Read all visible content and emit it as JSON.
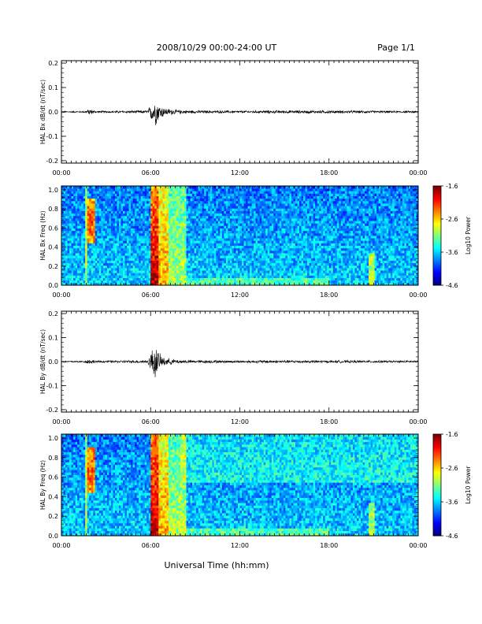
{
  "header": {
    "title": "2008/10/29   00:00-24:00 UT",
    "page": "Page 1/1"
  },
  "xaxis_label": "Universal Time (hh:mm)",
  "chart_data": [
    {
      "type": "line",
      "ylabel": "HAL Bx dB/dt (nT/sec)",
      "xlim": [
        0,
        24
      ],
      "ylim": [
        -0.21,
        0.21
      ],
      "xticklabels": [
        "00:00",
        "06:00",
        "12:00",
        "18:00",
        "00:00"
      ],
      "yticks": [
        -0.2,
        -0.1,
        0.0,
        0.1,
        0.2
      ],
      "yticklabels": [
        "-0.2",
        "-0.1",
        "0.0",
        "0.1",
        "0.2"
      ],
      "series": [
        {
          "envelope_hours": [
            0,
            1.5,
            1.9,
            2.3,
            5.8,
            6.1,
            6.3,
            6.6,
            7.0,
            7.8,
            9.0,
            12.0,
            14.0,
            18.0,
            20.0,
            24.0
          ],
          "envelope_amp": [
            0.003,
            0.003,
            0.012,
            0.004,
            0.006,
            0.04,
            0.055,
            0.03,
            0.015,
            0.008,
            0.006,
            0.005,
            0.006,
            0.006,
            0.005,
            0.004
          ]
        }
      ]
    },
    {
      "type": "heatmap",
      "ylabel": "HAL Bx Freq (Hz)",
      "xlim": [
        0,
        24
      ],
      "ylim": [
        0,
        1.04
      ],
      "xticklabels": [
        "00:00",
        "06:00",
        "12:00",
        "18:00",
        "00:00"
      ],
      "yticks": [
        0.0,
        0.2,
        0.4,
        0.6,
        0.8,
        1.0
      ],
      "yticklabels": [
        "0.0",
        "0.2",
        "0.4",
        "0.6",
        "0.8",
        "1.0"
      ],
      "colorbar": {
        "label": "Log10 Power",
        "ticks": [
          -1.6,
          -2.6,
          -3.6,
          -4.6
        ],
        "ticklabels": [
          "-1.6",
          "-2.6",
          "-3.6",
          "-4.6"
        ],
        "range": [
          -4.6,
          -1.6
        ]
      }
    },
    {
      "type": "line",
      "ylabel": "HAL By dB/dt (nT/sec)",
      "xlim": [
        0,
        24
      ],
      "ylim": [
        -0.21,
        0.21
      ],
      "xticklabels": [
        "00:00",
        "06:00",
        "12:00",
        "18:00",
        "00:00"
      ],
      "yticks": [
        -0.2,
        -0.1,
        0.0,
        0.1,
        0.2
      ],
      "yticklabels": [
        "-0.2",
        "-0.1",
        "0.0",
        "0.1",
        "0.2"
      ],
      "series": [
        {
          "envelope_hours": [
            0,
            1.5,
            1.9,
            2.3,
            5.8,
            6.1,
            6.3,
            6.6,
            7.0,
            7.8,
            9.0,
            12.0,
            14.0,
            18.0,
            20.0,
            24.0
          ],
          "envelope_amp": [
            0.003,
            0.003,
            0.012,
            0.004,
            0.006,
            0.05,
            0.07,
            0.03,
            0.015,
            0.008,
            0.006,
            0.005,
            0.006,
            0.005,
            0.005,
            0.004
          ]
        }
      ]
    },
    {
      "type": "heatmap",
      "ylabel": "HAL By Freq (Hz)",
      "xlim": [
        0,
        24
      ],
      "ylim": [
        0,
        1.04
      ],
      "xticklabels": [
        "00:00",
        "06:00",
        "12:00",
        "18:00",
        "00:00"
      ],
      "yticks": [
        0.0,
        0.2,
        0.4,
        0.6,
        0.8,
        1.0
      ],
      "yticklabels": [
        "0.0",
        "0.2",
        "0.4",
        "0.6",
        "0.8",
        "1.0"
      ],
      "colorbar": {
        "label": "Log10 Power",
        "ticks": [
          -1.6,
          -2.6,
          -3.6,
          -4.6
        ],
        "ticklabels": [
          "-1.6",
          "-2.6",
          "-3.6",
          "-4.6"
        ],
        "range": [
          -4.6,
          -1.6
        ]
      }
    }
  ]
}
